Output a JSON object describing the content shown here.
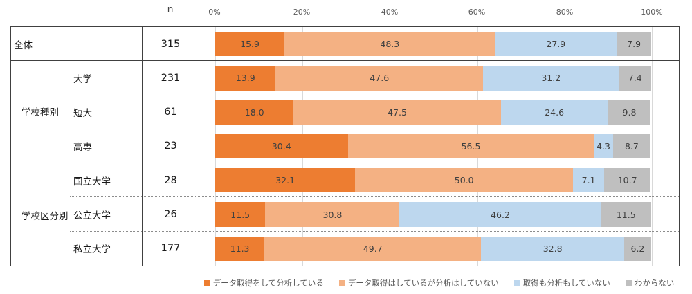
{
  "header": {
    "n_label": "n"
  },
  "chart_data": {
    "type": "bar",
    "stacked": true,
    "orientation": "horizontal",
    "value_unit": "%",
    "xlim": [
      0,
      100
    ],
    "x_ticks": [
      "0%",
      "20%",
      "40%",
      "60%",
      "80%",
      "100%"
    ],
    "grid": true,
    "legend_position": "bottom",
    "series": [
      {
        "name": "データ取得をして分析している",
        "color": "#ED7D31"
      },
      {
        "name": "データ取得はしているが分析はしていない",
        "color": "#F4B183"
      },
      {
        "name": "取得も分析もしていない",
        "color": "#BDD7EE"
      },
      {
        "name": "わからない",
        "color": "#BFBFBF"
      }
    ],
    "groups": [
      {
        "label": "学校種別",
        "row_indexes": [
          1,
          2,
          3
        ]
      },
      {
        "label": "学校区分別",
        "row_indexes": [
          4,
          5,
          6
        ]
      }
    ],
    "rows": [
      {
        "label": "全体",
        "group": null,
        "n": 315,
        "values": [
          15.9,
          48.3,
          27.9,
          7.9
        ]
      },
      {
        "label": "大学",
        "group": "学校種別",
        "n": 231,
        "values": [
          13.9,
          47.6,
          31.2,
          7.4
        ]
      },
      {
        "label": "短大",
        "group": "学校種別",
        "n": 61,
        "values": [
          18.0,
          47.5,
          24.6,
          9.8
        ]
      },
      {
        "label": "高専",
        "group": "学校種別",
        "n": 23,
        "values": [
          30.4,
          56.5,
          4.3,
          8.7
        ]
      },
      {
        "label": "国立大学",
        "group": "学校区分別",
        "n": 28,
        "values": [
          32.1,
          50.0,
          7.1,
          10.7
        ]
      },
      {
        "label": "公立大学",
        "group": "学校区分別",
        "n": 26,
        "values": [
          11.5,
          30.8,
          46.2,
          11.5
        ]
      },
      {
        "label": "私立大学",
        "group": "学校区分別",
        "n": 177,
        "values": [
          11.3,
          49.7,
          32.8,
          6.2
        ]
      }
    ],
    "colors": {
      "gridline": "#D9D9D9",
      "border": "#404040",
      "axis_text": "#595959",
      "bar_label_text": "#404040"
    }
  }
}
